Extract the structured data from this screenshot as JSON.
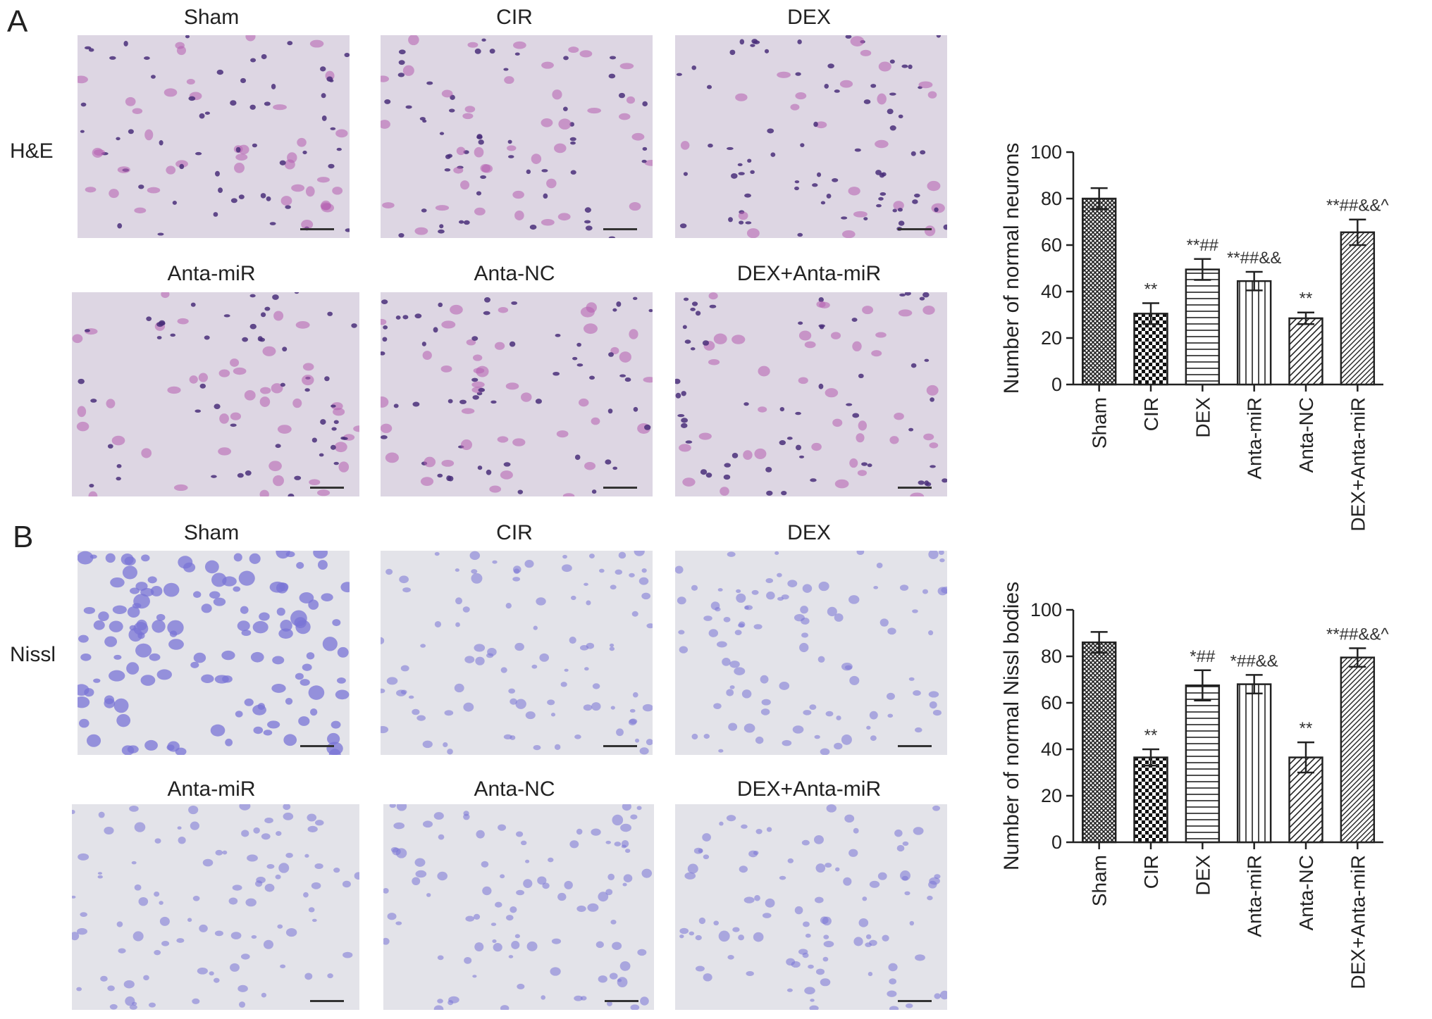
{
  "panels": [
    {
      "letter": "A",
      "stain": "H&E",
      "image_titles": [
        "Sham",
        "CIR",
        "DEX",
        "Anta-miR",
        "Anta-NC",
        "DEX+Anta-miR"
      ]
    },
    {
      "letter": "B",
      "stain": "Nissl",
      "image_titles": [
        "Sham",
        "CIR",
        "DEX",
        "Anta-miR",
        "Anta-NC",
        "DEX+Anta-miR"
      ]
    }
  ],
  "colors": {
    "he_background": "#ddd6e3",
    "he_cell": "#b45fb0",
    "he_nucleus": "#4a2f7a",
    "nissl_background": "#e3e3e9",
    "nissl_cell": "#7a74d6",
    "bar_fill": "#ffffff",
    "bar_stroke": "#222222"
  },
  "chart_data": [
    {
      "type": "bar",
      "ylabel": "Number of normal neurons",
      "xlabel": "",
      "ylim": [
        0,
        100
      ],
      "yticks": [
        "0",
        "20",
        "40",
        "60",
        "80",
        "100"
      ],
      "categories": [
        "Sham",
        "CIR",
        "DEX",
        "Anta-miR",
        "Anta-NC",
        "DEX+Anta-miR"
      ],
      "values": [
        80,
        30.5,
        49.5,
        44.5,
        28.5,
        65.5
      ],
      "errors": [
        4.5,
        4.5,
        4.5,
        4.0,
        2.5,
        5.5
      ],
      "patterns": [
        "crosshatch",
        "checker",
        "horizontal",
        "vertical",
        "diagonal",
        "diagonal-dense"
      ],
      "annotations": [
        "",
        "**",
        "**##",
        "**##&&",
        "**",
        "**##&&^"
      ]
    },
    {
      "type": "bar",
      "ylabel": "Number of normal Nissl bodies",
      "xlabel": "",
      "ylim": [
        0,
        100
      ],
      "yticks": [
        "0",
        "20",
        "40",
        "60",
        "80",
        "100"
      ],
      "categories": [
        "Sham",
        "CIR",
        "DEX",
        "Anta-miR",
        "Anta-NC",
        "DEX+Anta-miR"
      ],
      "values": [
        86,
        36.5,
        67.5,
        68,
        36.5,
        79.5
      ],
      "errors": [
        4.5,
        3.5,
        6.5,
        4.0,
        6.5,
        4.0
      ],
      "patterns": [
        "crosshatch",
        "checker",
        "horizontal",
        "vertical",
        "diagonal",
        "diagonal-dense"
      ],
      "annotations": [
        "",
        "**",
        "*##",
        "*##&&",
        "**",
        "**##&&^"
      ]
    }
  ]
}
